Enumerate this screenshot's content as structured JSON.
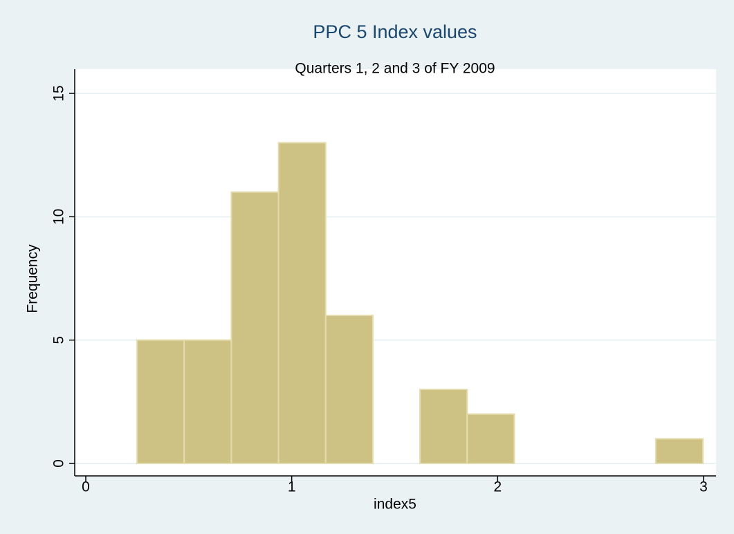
{
  "chart_data": {
    "type": "histogram",
    "title": "PPC 5 Index values",
    "subtitle": "Quarters 1, 2 and 3 of FY 2009",
    "x_label": "index5",
    "y_label": "Frequency",
    "bins": [
      0.249,
      0.478,
      0.707,
      0.936,
      1.165,
      1.394,
      1.623,
      1.852,
      2.081,
      2.31,
      2.539,
      2.768,
      2.997
    ],
    "values": [
      5,
      5,
      11,
      13,
      6,
      0,
      3,
      2,
      0,
      0,
      0,
      1
    ],
    "color": "#cdc283",
    "xlim": [
      0,
      3
    ],
    "xticks": [
      0,
      1,
      2,
      3
    ],
    "ylim": [
      0,
      15
    ],
    "yticks": [
      0,
      5,
      10,
      15
    ],
    "grid": true
  }
}
